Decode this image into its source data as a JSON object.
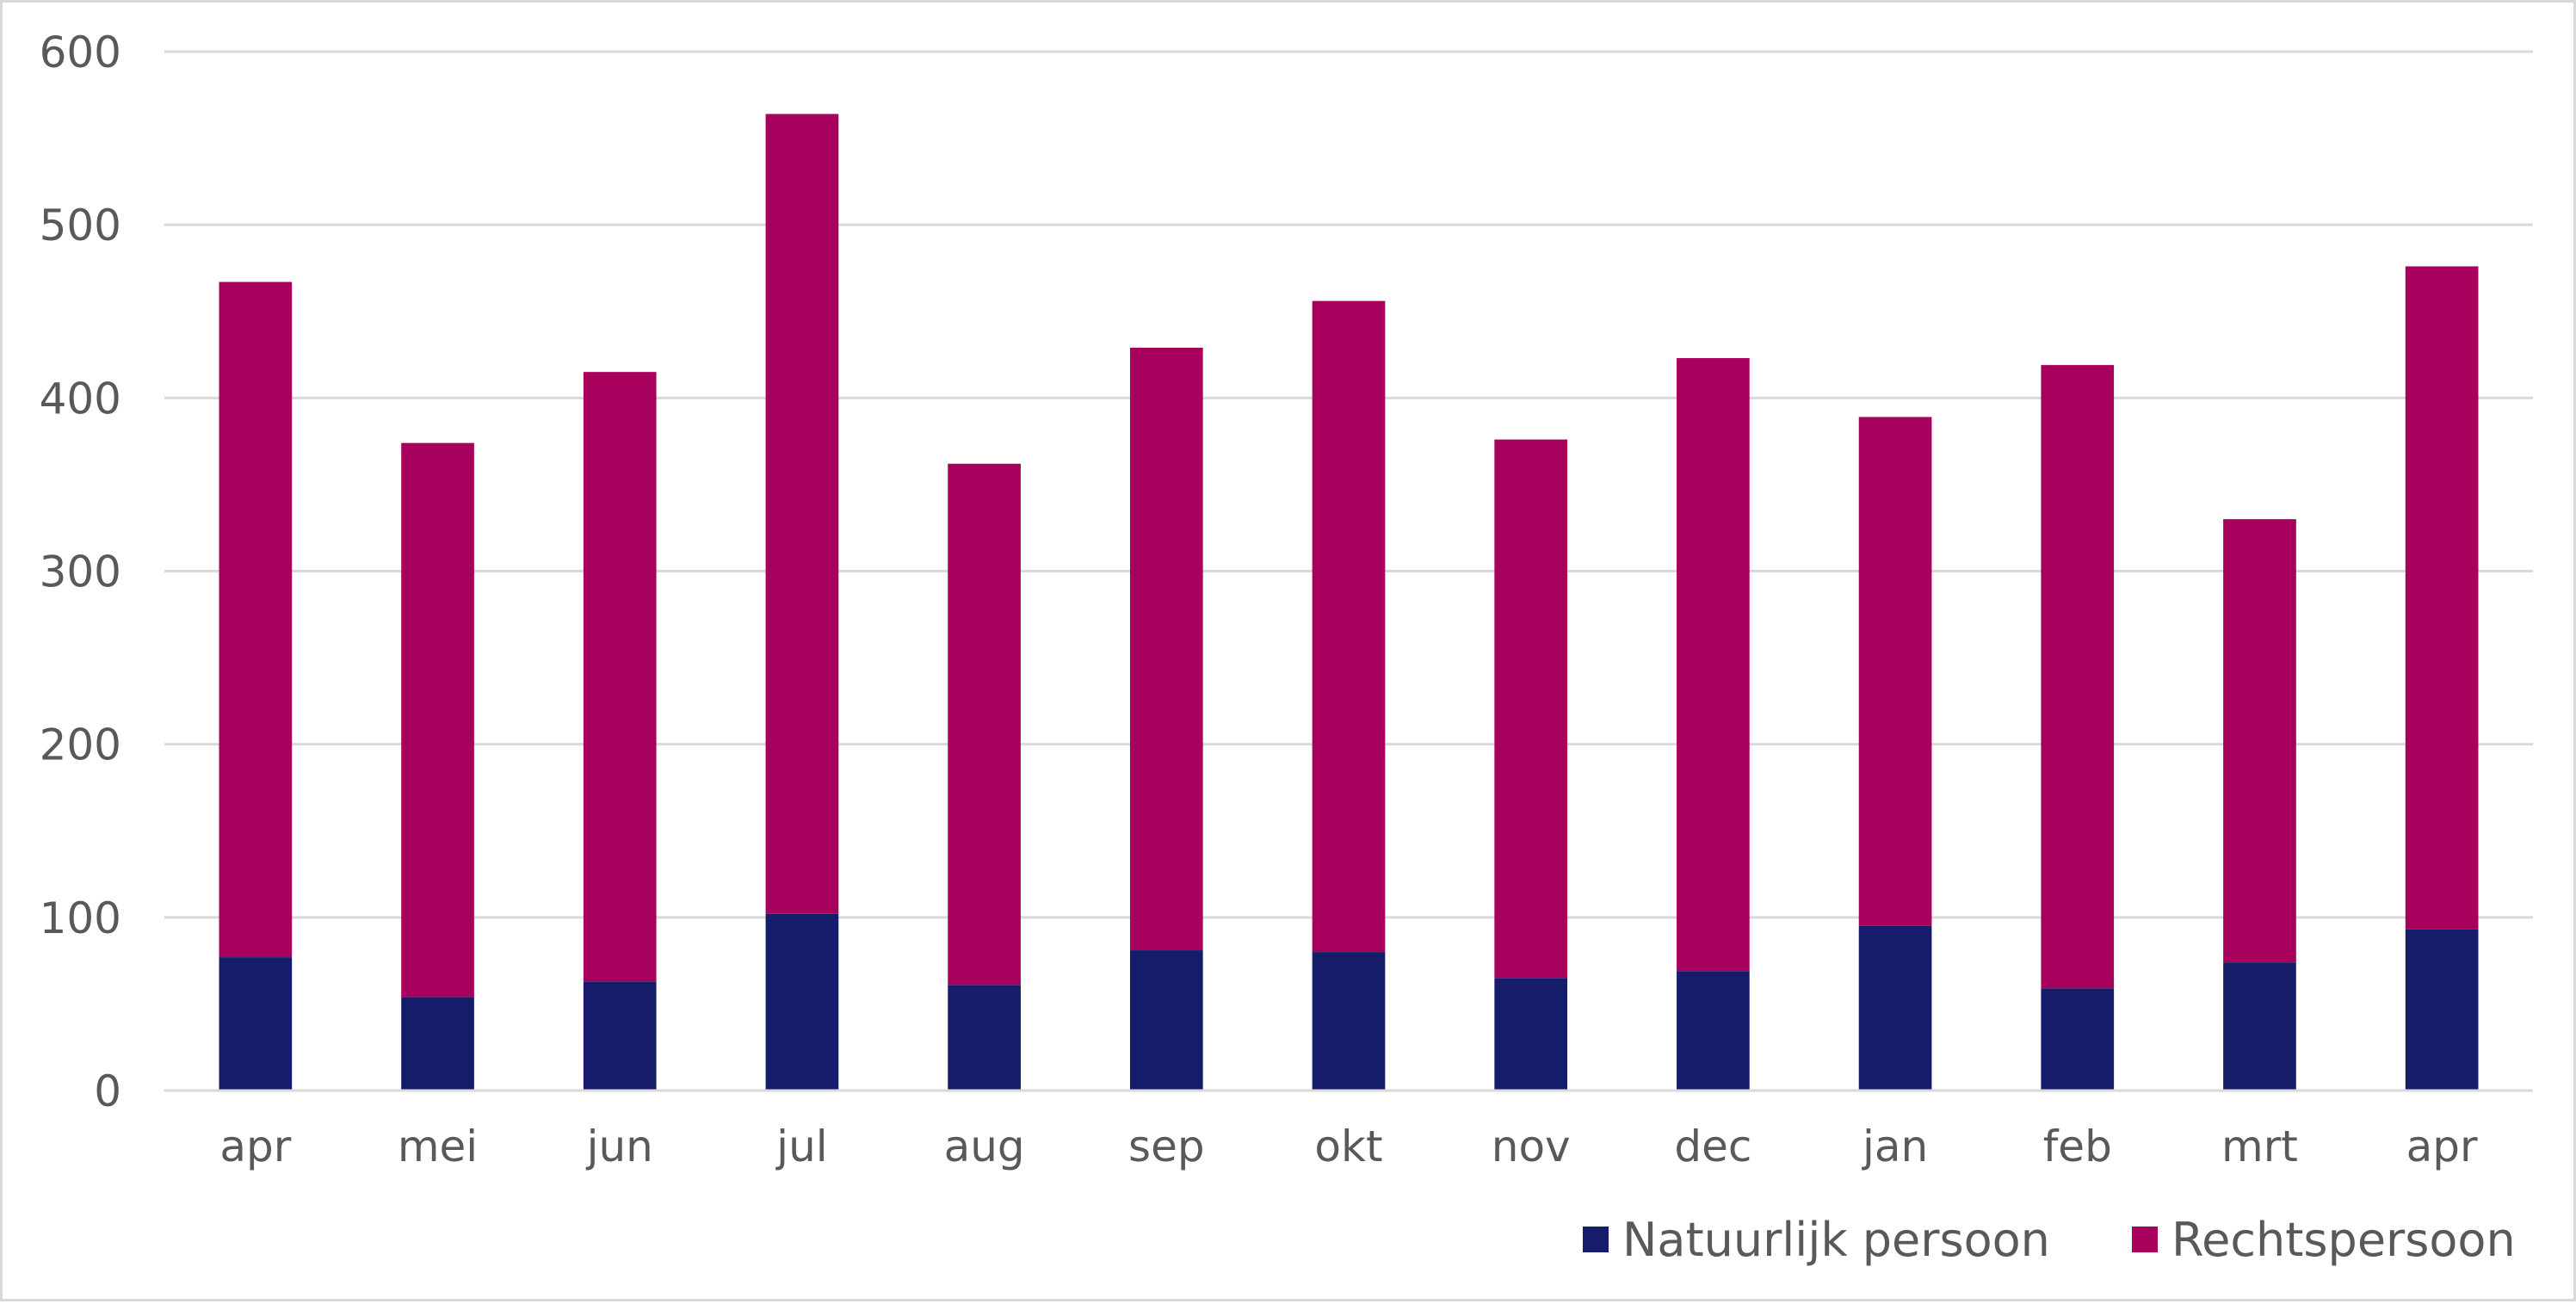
{
  "chart_data": {
    "type": "bar",
    "stacked": true,
    "categories": [
      "apr",
      "mei",
      "jun",
      "jul",
      "aug",
      "sep",
      "okt",
      "nov",
      "dec",
      "jan",
      "feb",
      "mrt",
      "apr"
    ],
    "series": [
      {
        "name": "Natuurlijk persoon",
        "color": "#151d6a",
        "values": [
          77,
          54,
          63,
          102,
          61,
          81,
          80,
          65,
          69,
          95,
          59,
          74,
          93
        ]
      },
      {
        "name": "Rechtspersoon",
        "color": "#a8005d",
        "values": [
          390,
          320,
          352,
          462,
          301,
          348,
          376,
          311,
          354,
          294,
          360,
          256,
          383
        ]
      }
    ],
    "ylim": [
      0,
      600
    ],
    "yticks": [
      0,
      100,
      200,
      300,
      400,
      500,
      600
    ],
    "grid": true,
    "legend_position": "bottom-right",
    "title": "",
    "xlabel": "",
    "ylabel": ""
  }
}
